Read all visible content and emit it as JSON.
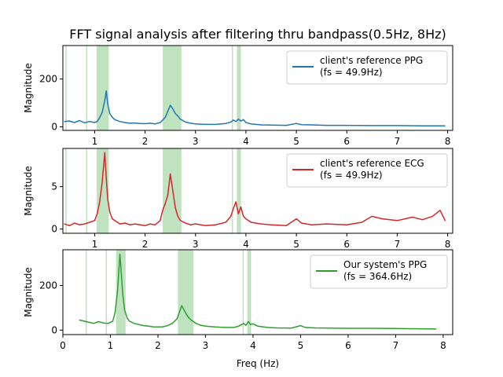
{
  "chart_data": {
    "type": "line",
    "title": "FFT signal analysis after filtering thru bandpass(0.5Hz, 8Hz)",
    "xlabel": "Freq (Hz)",
    "grid": false,
    "shared_x_ticks": [
      "0",
      "1",
      "2",
      "3",
      "4",
      "5",
      "6",
      "7",
      "8"
    ],
    "subplots": [
      {
        "ylabel": "Magnitude",
        "xlim": [
          0.37,
          8.1
        ],
        "ylim": [
          -15,
          340
        ],
        "xticks": [
          1,
          2,
          3,
          4,
          5,
          6,
          7,
          8
        ],
        "yticks": [
          0,
          200
        ],
        "legend_position": "upper right",
        "series": [
          {
            "name": "client's reference PPG\n(fs = 49.9Hz)",
            "color": "#1f77b4",
            "x": [
              0.4,
              0.5,
              0.6,
              0.7,
              0.8,
              0.9,
              1.0,
              1.05,
              1.1,
              1.15,
              1.2,
              1.23,
              1.26,
              1.3,
              1.35,
              1.4,
              1.5,
              1.6,
              1.7,
              1.8,
              1.9,
              2.0,
              2.1,
              2.2,
              2.3,
              2.35,
              2.4,
              2.45,
              2.5,
              2.55,
              2.6,
              2.65,
              2.7,
              2.8,
              2.9,
              3.0,
              3.2,
              3.4,
              3.6,
              3.7,
              3.75,
              3.8,
              3.85,
              3.9,
              3.95,
              4.0,
              4.1,
              4.3,
              4.5,
              4.8,
              5.0,
              5.1,
              5.3,
              5.6,
              6.0,
              6.5,
              7.0,
              7.5,
              7.95
            ],
            "y": [
              22,
              24,
              18,
              26,
              17,
              22,
              18,
              22,
              38,
              60,
              110,
              150,
              95,
              55,
              40,
              30,
              22,
              18,
              15,
              16,
              14,
              13,
              15,
              12,
              18,
              28,
              40,
              65,
              90,
              75,
              55,
              45,
              32,
              20,
              15,
              12,
              10,
              10,
              14,
              20,
              28,
              22,
              32,
              24,
              30,
              18,
              12,
              8,
              7,
              6,
              14,
              9,
              8,
              6,
              6,
              5,
              5,
              4,
              4
            ]
          }
        ],
        "highlight_bands": [
          [
            0.42,
            0.44
          ],
          [
            0.83,
            0.85
          ],
          [
            1.04,
            1.28
          ],
          [
            2.35,
            2.72
          ],
          [
            3.72,
            3.74
          ],
          [
            3.82,
            3.9
          ]
        ]
      },
      {
        "ylabel": "Magnitude",
        "xlim": [
          0.37,
          8.1
        ],
        "ylim": [
          -0.5,
          9.5
        ],
        "xticks": [
          1,
          2,
          3,
          4,
          5,
          6,
          7,
          8
        ],
        "yticks": [
          0,
          5
        ],
        "legend_position": "upper right",
        "series": [
          {
            "name": "client's reference ECG\n(fs = 49.9Hz)",
            "color": "#d62728",
            "x": [
              0.4,
              0.5,
              0.6,
              0.7,
              0.8,
              0.9,
              1.0,
              1.05,
              1.1,
              1.15,
              1.2,
              1.23,
              1.26,
              1.3,
              1.35,
              1.4,
              1.5,
              1.6,
              1.7,
              1.8,
              1.9,
              2.0,
              2.1,
              2.2,
              2.3,
              2.35,
              2.4,
              2.45,
              2.5,
              2.55,
              2.6,
              2.65,
              2.7,
              2.8,
              2.9,
              3.0,
              3.2,
              3.4,
              3.6,
              3.7,
              3.75,
              3.8,
              3.85,
              3.9,
              3.95,
              4.0,
              4.1,
              4.3,
              4.5,
              4.8,
              5.0,
              5.1,
              5.3,
              5.6,
              6.0,
              6.3,
              6.5,
              6.7,
              7.0,
              7.3,
              7.5,
              7.7,
              7.85,
              7.95
            ],
            "y": [
              0.6,
              0.4,
              0.7,
              0.5,
              0.6,
              0.8,
              1.0,
              1.8,
              3.2,
              5.5,
              9.0,
              6.0,
              3.5,
              2.0,
              1.2,
              1.0,
              0.6,
              0.7,
              0.5,
              0.6,
              0.5,
              0.4,
              0.6,
              0.5,
              1.0,
              2.2,
              3.0,
              4.0,
              6.5,
              4.5,
              2.5,
              1.5,
              1.0,
              0.7,
              0.5,
              0.6,
              0.4,
              0.5,
              0.8,
              1.5,
              2.4,
              3.2,
              1.8,
              2.6,
              1.5,
              1.2,
              0.8,
              0.6,
              0.5,
              0.4,
              1.2,
              0.7,
              0.5,
              0.6,
              0.5,
              0.8,
              1.5,
              1.2,
              1.0,
              1.4,
              1.1,
              1.5,
              2.2,
              1.0
            ]
          }
        ],
        "highlight_bands": [
          [
            0.42,
            0.44
          ],
          [
            0.83,
            0.85
          ],
          [
            1.04,
            1.28
          ],
          [
            2.35,
            2.72
          ],
          [
            3.72,
            3.74
          ],
          [
            3.82,
            3.9
          ]
        ]
      },
      {
        "ylabel": "Magnitude",
        "xlim": [
          0.0,
          8.2
        ],
        "ylim": [
          -20,
          360
        ],
        "xticks": [
          0,
          1,
          2,
          3,
          4,
          5,
          6,
          7,
          8
        ],
        "yticks": [
          0,
          200
        ],
        "legend_position": "upper right",
        "series": [
          {
            "name": "Our system's PPG\n(fs = 364.6Hz)",
            "color": "#2ca02c",
            "x": [
              0.35,
              0.45,
              0.55,
              0.65,
              0.75,
              0.85,
              0.95,
              1.05,
              1.1,
              1.15,
              1.2,
              1.23,
              1.26,
              1.3,
              1.35,
              1.4,
              1.5,
              1.6,
              1.7,
              1.8,
              1.9,
              2.0,
              2.1,
              2.2,
              2.3,
              2.4,
              2.45,
              2.5,
              2.55,
              2.6,
              2.65,
              2.7,
              2.8,
              2.9,
              3.0,
              3.2,
              3.4,
              3.6,
              3.7,
              3.8,
              3.85,
              3.9,
              3.95,
              4.0,
              4.1,
              4.3,
              4.5,
              4.8,
              5.0,
              5.1,
              5.3,
              5.6,
              6.0,
              6.5,
              7.0,
              7.5,
              7.85
            ],
            "y": [
              45,
              40,
              35,
              30,
              38,
              32,
              30,
              40,
              80,
              180,
              340,
              250,
              160,
              90,
              55,
              40,
              30,
              25,
              20,
              18,
              15,
              14,
              15,
              20,
              30,
              50,
              80,
              110,
              90,
              70,
              55,
              45,
              30,
              22,
              18,
              14,
              12,
              12,
              18,
              30,
              22,
              38,
              25,
              28,
              18,
              12,
              10,
              9,
              20,
              12,
              10,
              9,
              8,
              8,
              7,
              6,
              5
            ]
          }
        ],
        "highlight_bands": [
          [
            0.48,
            0.5
          ],
          [
            0.9,
            0.92
          ],
          [
            1.12,
            1.32
          ],
          [
            2.42,
            2.75
          ],
          [
            3.78,
            3.8
          ],
          [
            3.88,
            3.96
          ]
        ]
      }
    ]
  }
}
